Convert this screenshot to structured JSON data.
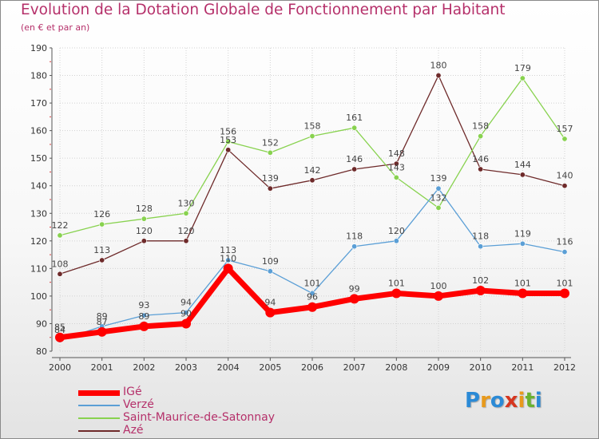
{
  "chart_data": {
    "type": "line",
    "title": "Evolution de la Dotation Globale de Fonctionnement par Habitant",
    "subtitle": "(en € et par an)",
    "xlabel": "",
    "ylabel": "",
    "categories": [
      "2000",
      "2001",
      "2002",
      "2003",
      "2004",
      "2005",
      "2006",
      "2007",
      "2008",
      "2009",
      "2010",
      "2011",
      "2012"
    ],
    "ylim": [
      80,
      190
    ],
    "yticks": [
      "80",
      "90",
      "100",
      "110",
      "120",
      "130",
      "140",
      "150",
      "160",
      "170",
      "180",
      "190"
    ],
    "grid": true,
    "series": [
      {
        "name": "IGé",
        "color": "#ff0000",
        "values": [
          85,
          87,
          89,
          90,
          110,
          94,
          96,
          99,
          101,
          100,
          102,
          101,
          101
        ],
        "labels": [
          "85",
          "87",
          "89",
          "90",
          "110",
          "94",
          "96",
          "99",
          "101",
          "100",
          "102",
          "101",
          "101"
        ]
      },
      {
        "name": "Verzé",
        "color": "#5b9fd6",
        "values": [
          84,
          89,
          93,
          94,
          113,
          109,
          101,
          118,
          120,
          139,
          118,
          119,
          116
        ],
        "labels": [
          "84",
          "89",
          "93",
          "94",
          "113",
          "109",
          "101",
          "118",
          "120",
          "139",
          "118",
          "119",
          "116"
        ]
      },
      {
        "name": "Saint-Maurice-de-Satonnay",
        "color": "#88d24f",
        "values": [
          122,
          126,
          128,
          130,
          156,
          152,
          158,
          161,
          143,
          132,
          158,
          179,
          157
        ],
        "labels": [
          "122",
          "126",
          "128",
          "130",
          "156",
          "152",
          "158",
          "161",
          "143",
          "132",
          "158",
          "179",
          "157"
        ]
      },
      {
        "name": "Azé",
        "color": "#6e2a2a",
        "values": [
          108,
          113,
          120,
          120,
          153,
          139,
          142,
          146,
          148,
          180,
          146,
          144,
          140
        ],
        "labels": [
          "108",
          "113",
          "120",
          "120",
          "153",
          "139",
          "142",
          "146",
          "148",
          "180",
          "146",
          "144",
          "140"
        ]
      }
    ]
  },
  "logo": {
    "letters": [
      {
        "ch": "P",
        "color": "#2b8ad6"
      },
      {
        "ch": "r",
        "color": "#e89a1c"
      },
      {
        "ch": "o",
        "color": "#2b8ad6"
      },
      {
        "ch": "x",
        "color": "#d6361f"
      },
      {
        "ch": "i",
        "color": "#e89a1c"
      },
      {
        "ch": "t",
        "color": "#69b230"
      },
      {
        "ch": "i",
        "color": "#2b8ad6"
      }
    ]
  }
}
